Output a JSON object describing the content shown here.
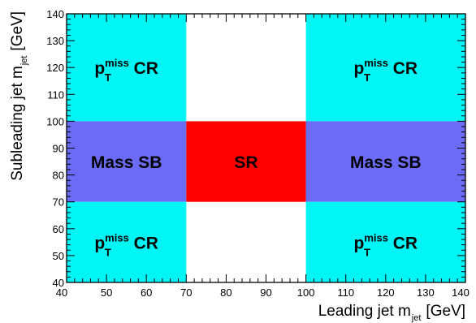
{
  "chart_data": {
    "type": "region-map",
    "xlabel": {
      "main": "Leading jet m",
      "sub": "jet",
      "unit": "[GeV]"
    },
    "ylabel": {
      "main": "Subleading jet m",
      "sub": "jet",
      "unit": "[GeV]"
    },
    "xlim": [
      40,
      140
    ],
    "ylim": [
      40,
      140
    ],
    "x_ticks": [
      40,
      50,
      60,
      70,
      80,
      90,
      100,
      110,
      120,
      130,
      140
    ],
    "y_ticks": [
      40,
      50,
      60,
      70,
      80,
      90,
      100,
      110,
      120,
      130,
      140
    ],
    "colors": {
      "cr": "#00f5f5",
      "sb": "#6b6bf5",
      "sr": "#ff0000",
      "frame": "#000000"
    },
    "regions": [
      {
        "id": "cr-top-left",
        "kind": "cr",
        "x": [
          40,
          70
        ],
        "y": [
          100,
          140
        ],
        "label": {
          "main": "p",
          "sup": "miss",
          "sub": "T",
          "suffix": " CR"
        }
      },
      {
        "id": "cr-top-right",
        "kind": "cr",
        "x": [
          100,
          140
        ],
        "y": [
          100,
          140
        ],
        "label": {
          "main": "p",
          "sup": "miss",
          "sub": "T",
          "suffix": " CR"
        }
      },
      {
        "id": "sb-left",
        "kind": "sb",
        "x": [
          40,
          70
        ],
        "y": [
          70,
          100
        ],
        "label": {
          "text": "Mass SB"
        }
      },
      {
        "id": "sr",
        "kind": "sr",
        "x": [
          70,
          100
        ],
        "y": [
          70,
          100
        ],
        "label": {
          "text": "SR"
        }
      },
      {
        "id": "sb-right",
        "kind": "sb",
        "x": [
          100,
          140
        ],
        "y": [
          70,
          100
        ],
        "label": {
          "text": "Mass SB"
        }
      },
      {
        "id": "cr-bottom-left",
        "kind": "cr",
        "x": [
          40,
          70
        ],
        "y": [
          40,
          70
        ],
        "label": {
          "main": "p",
          "sup": "miss",
          "sub": "T",
          "suffix": " CR"
        }
      },
      {
        "id": "cr-bottom-right",
        "kind": "cr",
        "x": [
          100,
          140
        ],
        "y": [
          40,
          70
        ],
        "label": {
          "main": "p",
          "sup": "miss",
          "sub": "T",
          "suffix": " CR"
        }
      }
    ]
  }
}
